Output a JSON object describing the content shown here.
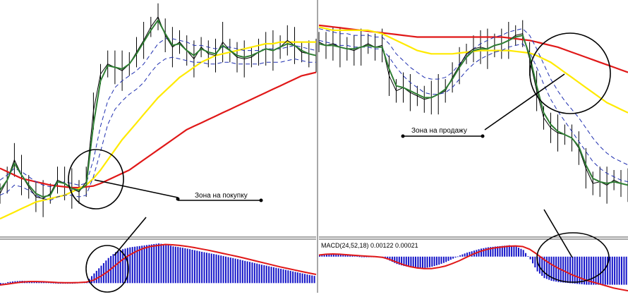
{
  "colors": {
    "price": "#000000",
    "ema_fast": "#2e7d32",
    "ema_dashed": "#1f2fb0",
    "sma_yellow": "#ffea00",
    "sma_red": "#e01818",
    "macd_hist": "#1414c8",
    "macd_signal": "#e01818",
    "separator": "#505050"
  },
  "annotations": {
    "buy_zone": "Зона на покупку",
    "sell_zone": "Зона на продажу"
  },
  "chart_data": [
    {
      "type": "line",
      "panel": "left price chart",
      "x": [
        0,
        10,
        20,
        30,
        40,
        50,
        60,
        70,
        80,
        90,
        100,
        110,
        120,
        130,
        140,
        150,
        160,
        170,
        180,
        190,
        200,
        210,
        220,
        230,
        240,
        250,
        260,
        270,
        280,
        290,
        300,
        310,
        320,
        330,
        340,
        350,
        360,
        370,
        380,
        390,
        400,
        410,
        420,
        430,
        440
      ],
      "series": [
        {
          "key": "close",
          "values": [
            1.5,
            2.3,
            3.5,
            2.6,
            1.9,
            1.3,
            1.2,
            1.5,
            2.3,
            2.1,
            1.8,
            1.6,
            2.2,
            6.4,
            8.6,
            9.2,
            9.0,
            8.8,
            9.2,
            9.9,
            10.6,
            11.4,
            12.0,
            10.9,
            10.2,
            10.5,
            10.0,
            9.5,
            10.2,
            9.8,
            9.7,
            10.5,
            10.0,
            9.6,
            9.5,
            9.6,
            9.9,
            10.1,
            10.0,
            10.2,
            10.6,
            10.3,
            9.9,
            9.8,
            9.7
          ]
        },
        {
          "key": "ema_fast",
          "values": [
            1.7,
            2.3,
            3.3,
            2.6,
            2.0,
            1.5,
            1.3,
            1.4,
            2.2,
            2.1,
            1.8,
            1.7,
            2.0,
            5.6,
            8.2,
            9.1,
            9.0,
            8.9,
            9.2,
            9.8,
            10.5,
            11.2,
            11.8,
            11.0,
            10.3,
            10.4,
            10.0,
            9.7,
            10.1,
            9.9,
            9.8,
            10.3,
            10.0,
            9.7,
            9.6,
            9.7,
            9.9,
            10.1,
            10.0,
            10.2,
            10.4,
            10.3,
            10.0,
            9.8,
            9.7
          ]
        },
        {
          "key": "ema_band_upper",
          "values": [
            2.3,
            2.6,
            3.0,
            2.8,
            2.5,
            2.2,
            2.0,
            1.9,
            2.1,
            2.2,
            2.1,
            2.0,
            2.1,
            3.5,
            5.5,
            7.0,
            7.8,
            8.2,
            8.5,
            8.8,
            9.2,
            9.8,
            10.4,
            10.7,
            10.7,
            10.6,
            10.5,
            10.3,
            10.3,
            10.2,
            10.1,
            10.2,
            10.2,
            10.1,
            10.0,
            10.0,
            10.0,
            10.1,
            10.1,
            10.1,
            10.2,
            10.3,
            10.2,
            10.1,
            10.0
          ]
        },
        {
          "key": "ema_band_lower",
          "values": [
            1.4,
            1.6,
            2.0,
            1.9,
            1.7,
            1.4,
            1.2,
            1.1,
            1.3,
            1.4,
            1.4,
            1.3,
            1.4,
            2.5,
            4.0,
            5.6,
            6.5,
            7.0,
            7.4,
            7.7,
            8.1,
            8.7,
            9.2,
            9.5,
            9.6,
            9.5,
            9.4,
            9.3,
            9.3,
            9.2,
            9.2,
            9.3,
            9.3,
            9.2,
            9.2,
            9.2,
            9.2,
            9.3,
            9.3,
            9.3,
            9.4,
            9.5,
            9.4,
            9.3,
            9.3
          ]
        },
        {
          "key": "sma_yellow",
          "values": [
            0.0,
            0.2,
            0.4,
            0.6,
            0.8,
            1.0,
            1.1,
            1.2,
            1.3,
            1.4,
            1.6,
            1.8,
            2.0,
            2.4,
            2.9,
            3.5,
            4.1,
            4.7,
            5.2,
            5.7,
            6.2,
            6.7,
            7.2,
            7.6,
            8.0,
            8.4,
            8.7,
            9.0,
            9.3,
            9.5,
            9.7,
            9.8,
            9.9,
            10.0,
            10.1,
            10.2,
            10.3,
            10.4,
            10.4,
            10.5,
            10.5,
            10.5,
            10.5,
            10.5,
            10.5
          ]
        },
        {
          "key": "sma_red",
          "values": [
            3.0,
            2.8,
            2.6,
            2.4,
            2.3,
            2.2,
            2.1,
            2.0,
            1.95,
            1.9,
            1.85,
            1.85,
            1.9,
            1.95,
            2.1,
            2.3,
            2.5,
            2.7,
            2.9,
            3.2,
            3.5,
            3.8,
            4.1,
            4.4,
            4.7,
            5.0,
            5.3,
            5.5,
            5.7,
            5.9,
            6.1,
            6.3,
            6.5,
            6.7,
            6.9,
            7.1,
            7.3,
            7.5,
            7.7,
            7.9,
            8.1,
            8.3,
            8.5,
            8.6,
            8.7
          ]
        }
      ],
      "ylim": [
        -1,
        13
      ]
    },
    {
      "type": "bar",
      "panel": "left MACD",
      "x": [
        0,
        10,
        20,
        30,
        40,
        50,
        60,
        70,
        80,
        90,
        100,
        110,
        120,
        130,
        140,
        150,
        160,
        170,
        180,
        190,
        200,
        210,
        220,
        230,
        240,
        250,
        260,
        270,
        280,
        290,
        300,
        310,
        320,
        330,
        340,
        350,
        360,
        370,
        380,
        390,
        400,
        410,
        420,
        430,
        440
      ],
      "series": [
        {
          "key": "histogram",
          "values": [
            -0.1,
            0.05,
            0.1,
            0.12,
            0.1,
            0.08,
            0.05,
            0.02,
            0.0,
            0.0,
            0.0,
            0.02,
            0.08,
            0.5,
            0.9,
            1.3,
            1.6,
            1.75,
            1.85,
            1.9,
            1.95,
            2.0,
            2.05,
            2.0,
            1.9,
            1.85,
            1.78,
            1.7,
            1.62,
            1.55,
            1.48,
            1.4,
            1.32,
            1.24,
            1.15,
            1.07,
            0.98,
            0.9,
            0.82,
            0.74,
            0.66,
            0.58,
            0.5,
            0.42,
            0.35
          ]
        },
        {
          "key": "signal",
          "values": [
            -0.1,
            -0.05,
            0.0,
            0.05,
            0.08,
            0.08,
            0.07,
            0.05,
            0.03,
            0.02,
            0.02,
            0.03,
            0.05,
            0.15,
            0.35,
            0.6,
            0.9,
            1.2,
            1.45,
            1.65,
            1.8,
            1.9,
            1.95,
            2.0,
            1.98,
            1.95,
            1.9,
            1.84,
            1.77,
            1.7,
            1.62,
            1.54,
            1.46,
            1.38,
            1.29,
            1.2,
            1.11,
            1.02,
            0.93,
            0.84,
            0.76,
            0.68,
            0.6,
            0.52,
            0.45
          ]
        }
      ],
      "ylim": [
        -0.5,
        2.2
      ]
    },
    {
      "type": "line",
      "panel": "right price chart",
      "x": [
        0,
        10,
        20,
        30,
        40,
        50,
        60,
        70,
        80,
        90,
        100,
        110,
        120,
        130,
        140,
        150,
        160,
        170,
        180,
        190,
        200,
        210,
        220,
        230,
        240,
        250,
        260,
        270,
        280,
        290,
        300,
        310,
        320,
        330,
        340,
        350,
        360,
        370,
        380,
        390,
        400,
        410,
        420,
        430,
        440
      ],
      "series": [
        {
          "key": "close",
          "values": [
            10.5,
            10.3,
            10.4,
            10.2,
            10.1,
            10.0,
            10.2,
            10.4,
            10.2,
            10.3,
            8.5,
            7.6,
            7.8,
            7.5,
            7.3,
            7.1,
            7.2,
            7.4,
            7.6,
            8.4,
            9.1,
            9.8,
            10.1,
            10.2,
            10.1,
            10.3,
            10.4,
            10.6,
            10.9,
            11.0,
            9.5,
            7.6,
            6.0,
            5.4,
            5.1,
            5.0,
            4.8,
            4.2,
            3.0,
            2.1,
            2.2,
            2.0,
            2.3,
            2.1,
            2.0
          ]
        },
        {
          "key": "ema_fast",
          "values": [
            10.4,
            10.3,
            10.3,
            10.2,
            10.1,
            10.1,
            10.2,
            10.3,
            10.2,
            10.2,
            8.9,
            7.9,
            7.8,
            7.6,
            7.4,
            7.2,
            7.2,
            7.4,
            7.7,
            8.3,
            9.0,
            9.6,
            10.0,
            10.1,
            10.1,
            10.3,
            10.4,
            10.6,
            10.8,
            10.9,
            9.7,
            7.9,
            6.3,
            5.6,
            5.2,
            5.0,
            4.8,
            4.3,
            3.2,
            2.4,
            2.2,
            2.1,
            2.2,
            2.1,
            2.0
          ]
        },
        {
          "key": "ema_band_upper",
          "values": [
            11.3,
            11.2,
            11.1,
            11.0,
            11.0,
            10.9,
            10.9,
            10.9,
            10.8,
            10.8,
            10.4,
            9.8,
            9.4,
            9.0,
            8.7,
            8.4,
            8.3,
            8.3,
            8.4,
            8.7,
            9.2,
            9.7,
            10.1,
            10.4,
            10.6,
            10.8,
            10.9,
            11.1,
            11.2,
            11.3,
            10.9,
            10.1,
            9.2,
            8.3,
            7.6,
            7.0,
            6.5,
            6.0,
            5.4,
            4.8,
            4.3,
            3.9,
            3.6,
            3.4,
            3.2
          ]
        },
        {
          "key": "ema_band_lower",
          "values": [
            10.6,
            10.5,
            10.4,
            10.3,
            10.3,
            10.2,
            10.2,
            10.2,
            10.1,
            10.1,
            9.6,
            9.0,
            8.5,
            8.1,
            7.8,
            7.5,
            7.4,
            7.4,
            7.5,
            7.8,
            8.3,
            8.8,
            9.2,
            9.5,
            9.7,
            9.9,
            10.0,
            10.2,
            10.3,
            10.4,
            9.9,
            9.0,
            8.0,
            7.1,
            6.4,
            5.8,
            5.2,
            4.6,
            4.0,
            3.4,
            3.0,
            2.7,
            2.5,
            2.3,
            2.2
          ]
        },
        {
          "key": "sma_yellow",
          "values": [
            11.4,
            11.3,
            11.2,
            11.2,
            11.2,
            11.2,
            11.2,
            11.2,
            11.1,
            11.0,
            10.8,
            10.6,
            10.4,
            10.2,
            10.0,
            9.9,
            9.8,
            9.8,
            9.8,
            9.8,
            9.85,
            9.9,
            9.95,
            10.0,
            10.0,
            10.0,
            10.0,
            10.0,
            9.95,
            9.9,
            9.85,
            9.7,
            9.5,
            9.3,
            9.0,
            8.7,
            8.4,
            8.1,
            7.8,
            7.5,
            7.2,
            6.9,
            6.7,
            6.5,
            6.3
          ]
        },
        {
          "key": "sma_red",
          "values": [
            11.5,
            11.45,
            11.4,
            11.35,
            11.3,
            11.25,
            11.2,
            11.15,
            11.1,
            11.05,
            11.0,
            10.95,
            10.9,
            10.85,
            10.8,
            10.8,
            10.8,
            10.8,
            10.8,
            10.8,
            10.8,
            10.8,
            10.8,
            10.8,
            10.8,
            10.8,
            10.8,
            10.75,
            10.7,
            10.65,
            10.6,
            10.5,
            10.4,
            10.3,
            10.2,
            10.05,
            9.9,
            9.75,
            9.6,
            9.45,
            9.3,
            9.15,
            9.0,
            8.85,
            8.7
          ]
        }
      ],
      "ylim": [
        -1,
        13
      ]
    },
    {
      "type": "bar",
      "panel": "right MACD",
      "title": "MACD(24,52,18) 0.00122 0.00021",
      "x": [
        0,
        10,
        20,
        30,
        40,
        50,
        60,
        70,
        80,
        90,
        100,
        110,
        120,
        130,
        140,
        150,
        160,
        170,
        180,
        190,
        200,
        210,
        220,
        230,
        240,
        250,
        260,
        270,
        280,
        290,
        300,
        310,
        320,
        330,
        340,
        350,
        360,
        370,
        380,
        390,
        400,
        410,
        420,
        430,
        440
      ],
      "series": [
        {
          "key": "histogram",
          "values": [
            0.1,
            0.2,
            0.2,
            0.15,
            0.1,
            0.05,
            0.0,
            0.0,
            0.0,
            -0.05,
            -0.3,
            -0.55,
            -0.7,
            -0.8,
            -0.85,
            -0.85,
            -0.75,
            -0.6,
            -0.4,
            -0.15,
            0.1,
            0.3,
            0.45,
            0.6,
            0.7,
            0.75,
            0.8,
            0.85,
            0.75,
            0.5,
            -0.2,
            -1.1,
            -1.6,
            -1.8,
            -1.9,
            -1.95,
            -2.0,
            -2.05,
            -2.1,
            -2.1,
            -2.1,
            -2.1,
            -2.1,
            -2.1,
            -2.1
          ]
        },
        {
          "key": "signal",
          "values": [
            0.12,
            0.18,
            0.2,
            0.18,
            0.14,
            0.1,
            0.06,
            0.03,
            0.0,
            -0.05,
            -0.2,
            -0.4,
            -0.6,
            -0.75,
            -0.85,
            -0.9,
            -0.9,
            -0.82,
            -0.7,
            -0.52,
            -0.3,
            -0.05,
            0.2,
            0.4,
            0.55,
            0.65,
            0.72,
            0.78,
            0.8,
            0.75,
            0.55,
            0.2,
            -0.2,
            -0.55,
            -0.85,
            -1.1,
            -1.35,
            -1.55,
            -1.75,
            -1.9,
            -2.05,
            -2.2,
            -2.35,
            -2.45,
            -2.55
          ]
        }
      ],
      "ylim": [
        -2.7,
        1.2
      ]
    }
  ]
}
